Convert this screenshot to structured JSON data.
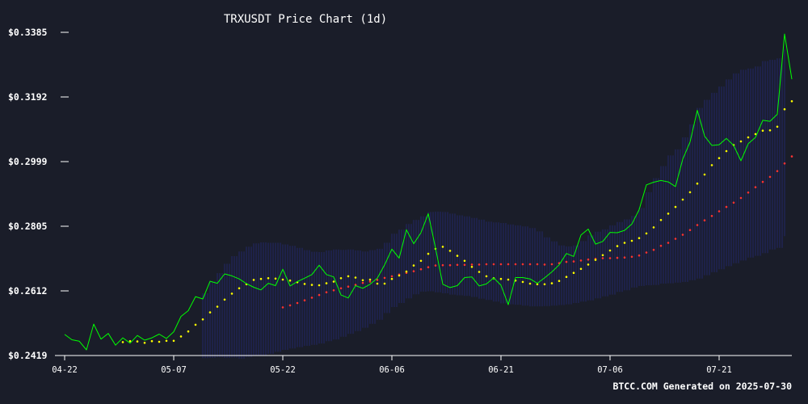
{
  "chart_data": {
    "type": "line",
    "title": "TRXUSDT Price Chart (1d)",
    "footer": "BTCC.COM Generated on 2025-07-30",
    "xlabel": "",
    "ylabel": "",
    "ylim": [
      0.2419,
      0.3385
    ],
    "y_ticks": [
      "$0.3385",
      "$0.3192",
      "$0.2999",
      "$0.2805",
      "$0.2612",
      "$0.2419"
    ],
    "x_ticks": [
      "04-22",
      "05-07",
      "05-22",
      "06-06",
      "06-21",
      "07-06",
      "07-21"
    ],
    "x_start": "2025-04-22",
    "x_end": "2025-07-30",
    "grid": false,
    "colors": {
      "background": "#1a1d29",
      "text": "#ffffff",
      "axis": "#ffffff",
      "price": "#00ff00",
      "ma20": "#ffff00",
      "ma50": "#ff3333",
      "band": "#2a2f8a"
    },
    "series": [
      {
        "key": "price",
        "style": "line",
        "values": [
          0.2482,
          0.2466,
          0.2462,
          0.2436,
          0.2513,
          0.2468,
          0.2485,
          0.245,
          0.2472,
          0.2456,
          0.2479,
          0.2465,
          0.2472,
          0.2483,
          0.247,
          0.249,
          0.2536,
          0.2553,
          0.2595,
          0.2588,
          0.2641,
          0.2635,
          0.2663,
          0.2657,
          0.2648,
          0.2634,
          0.2623,
          0.2615,
          0.2635,
          0.2628,
          0.2677,
          0.2627,
          0.264,
          0.265,
          0.2661,
          0.2689,
          0.2661,
          0.2654,
          0.26,
          0.2591,
          0.2628,
          0.262,
          0.2632,
          0.265,
          0.269,
          0.2737,
          0.271,
          0.2795,
          0.2753,
          0.2786,
          0.2843,
          0.274,
          0.2632,
          0.2622,
          0.2628,
          0.2652,
          0.2654,
          0.2627,
          0.2633,
          0.2651,
          0.2629,
          0.2571,
          0.2652,
          0.2652,
          0.2648,
          0.2635,
          0.2651,
          0.2669,
          0.269,
          0.2724,
          0.2715,
          0.2779,
          0.2797,
          0.2752,
          0.276,
          0.2787,
          0.2786,
          0.2793,
          0.2812,
          0.2855,
          0.2929,
          0.2937,
          0.2942,
          0.2938,
          0.2924,
          0.3006,
          0.3057,
          0.3152,
          0.3075,
          0.3047,
          0.3049,
          0.3068,
          0.3047,
          0.3001,
          0.3052,
          0.3071,
          0.3122,
          0.3119,
          0.314,
          0.338,
          0.3245
        ]
      },
      {
        "key": "ma20",
        "style": "dots",
        "values": [
          null,
          null,
          null,
          null,
          null,
          null,
          null,
          null,
          0.2459,
          0.2462,
          0.2461,
          0.2457,
          0.2462,
          0.246,
          0.2463,
          0.2463,
          0.2476,
          0.2491,
          0.2511,
          0.2527,
          0.2548,
          0.2565,
          0.2586,
          0.2604,
          0.262,
          0.2632,
          0.2645,
          0.2648,
          0.265,
          0.2649,
          0.2646,
          0.2643,
          0.2638,
          0.2633,
          0.263,
          0.2629,
          0.2635,
          0.264,
          0.265,
          0.2656,
          0.2652,
          0.2644,
          0.2646,
          0.2634,
          0.2634,
          0.2648,
          0.2658,
          0.267,
          0.2688,
          0.2702,
          0.2723,
          0.2738,
          0.2744,
          0.2732,
          0.2717,
          0.2702,
          0.2684,
          0.2669,
          0.2656,
          0.265,
          0.2648,
          0.2646,
          0.2643,
          0.2639,
          0.2634,
          0.2632,
          0.2632,
          0.2635,
          0.2642,
          0.2654,
          0.2666,
          0.2678,
          0.2691,
          0.2705,
          0.2719,
          0.2733,
          0.2746,
          0.2756,
          0.2762,
          0.277,
          0.2784,
          0.2802,
          0.2824,
          0.2843,
          0.2863,
          0.2885,
          0.2907,
          0.2933,
          0.296,
          0.2988,
          0.3009,
          0.303,
          0.3048,
          0.3059,
          0.3071,
          0.3081,
          0.3091,
          0.3092,
          0.3103,
          0.3155,
          0.3179
        ]
      },
      {
        "key": "ma50",
        "style": "dots",
        "values": [
          null,
          null,
          null,
          null,
          null,
          null,
          null,
          null,
          null,
          null,
          null,
          null,
          null,
          null,
          null,
          null,
          null,
          null,
          null,
          null,
          null,
          null,
          null,
          null,
          null,
          null,
          null,
          null,
          null,
          null,
          0.2563,
          0.2569,
          0.2576,
          0.2584,
          0.2592,
          0.26,
          0.2608,
          0.2614,
          0.262,
          0.2625,
          0.263,
          0.2636,
          0.264,
          0.2645,
          0.2651,
          0.2656,
          0.2661,
          0.2666,
          0.2671,
          0.2677,
          0.2683,
          0.2688,
          0.2689,
          0.2689,
          0.269,
          0.269,
          0.2691,
          0.2691,
          0.2692,
          0.2692,
          0.2692,
          0.2692,
          0.2692,
          0.2692,
          0.2692,
          0.2692,
          0.2691,
          0.2692,
          0.2695,
          0.2699,
          0.27,
          0.2703,
          0.2706,
          0.2708,
          0.271,
          0.271,
          0.2711,
          0.2712,
          0.2714,
          0.2718,
          0.2727,
          0.2735,
          0.2747,
          0.2756,
          0.2768,
          0.278,
          0.2794,
          0.2809,
          0.2823,
          0.2836,
          0.285,
          0.2863,
          0.2876,
          0.289,
          0.2906,
          0.2922,
          0.2938,
          0.2953,
          0.297,
          0.2993,
          0.3014
        ]
      },
      {
        "key": "bollinger_upper",
        "style": "band",
        "values": [
          null,
          null,
          null,
          null,
          null,
          null,
          null,
          null,
          null,
          null,
          null,
          null,
          null,
          null,
          null,
          null,
          null,
          null,
          null,
          0.2605,
          0.2642,
          0.2665,
          0.2693,
          0.2716,
          0.273,
          0.2744,
          0.2754,
          0.2757,
          0.2756,
          0.2756,
          0.2751,
          0.2747,
          0.2741,
          0.2734,
          0.2729,
          0.2728,
          0.2733,
          0.2736,
          0.2735,
          0.2736,
          0.2733,
          0.273,
          0.2734,
          0.2738,
          0.2756,
          0.2783,
          0.2795,
          0.2812,
          0.2824,
          0.2835,
          0.2848,
          0.2849,
          0.2848,
          0.2843,
          0.2838,
          0.2835,
          0.283,
          0.2825,
          0.2819,
          0.2817,
          0.2815,
          0.2811,
          0.2808,
          0.2805,
          0.28,
          0.279,
          0.2772,
          0.276,
          0.2748,
          0.2745,
          0.2748,
          0.2761,
          0.2778,
          0.2789,
          0.2796,
          0.2808,
          0.2818,
          0.2826,
          0.2836,
          0.286,
          0.2907,
          0.2949,
          0.2985,
          0.3017,
          0.3035,
          0.3071,
          0.311,
          0.3159,
          0.3183,
          0.3204,
          0.3223,
          0.3244,
          0.3262,
          0.3273,
          0.3277,
          0.3283,
          0.3299,
          0.3303,
          0.3307,
          0.3333,
          0.3341
        ]
      },
      {
        "key": "bollinger_lower",
        "style": "band",
        "values": [
          null,
          null,
          null,
          null,
          null,
          null,
          null,
          null,
          null,
          null,
          null,
          null,
          null,
          null,
          null,
          null,
          null,
          null,
          null,
          0.2411,
          0.2412,
          0.2414,
          0.2412,
          0.2413,
          0.241,
          0.2415,
          0.2418,
          0.242,
          0.2424,
          0.243,
          0.2436,
          0.244,
          0.2444,
          0.2448,
          0.2451,
          0.2455,
          0.2462,
          0.2467,
          0.2475,
          0.2484,
          0.2492,
          0.2502,
          0.2514,
          0.2526,
          0.2546,
          0.2564,
          0.2576,
          0.259,
          0.2602,
          0.261,
          0.2611,
          0.2608,
          0.2605,
          0.2601,
          0.2599,
          0.2597,
          0.2594,
          0.2589,
          0.2585,
          0.258,
          0.2575,
          0.2572,
          0.2571,
          0.2568,
          0.2566,
          0.2566,
          0.2567,
          0.2568,
          0.257,
          0.2572,
          0.2576,
          0.258,
          0.2584,
          0.259,
          0.2596,
          0.2601,
          0.2609,
          0.2614,
          0.2622,
          0.2627,
          0.2629,
          0.263,
          0.2634,
          0.2635,
          0.2637,
          0.2639,
          0.2644,
          0.2649,
          0.2659,
          0.2668,
          0.2677,
          0.2686,
          0.2695,
          0.2703,
          0.2712,
          0.2717,
          0.2725,
          0.2736,
          0.2741,
          0.2776,
          0.2816
        ]
      }
    ]
  }
}
